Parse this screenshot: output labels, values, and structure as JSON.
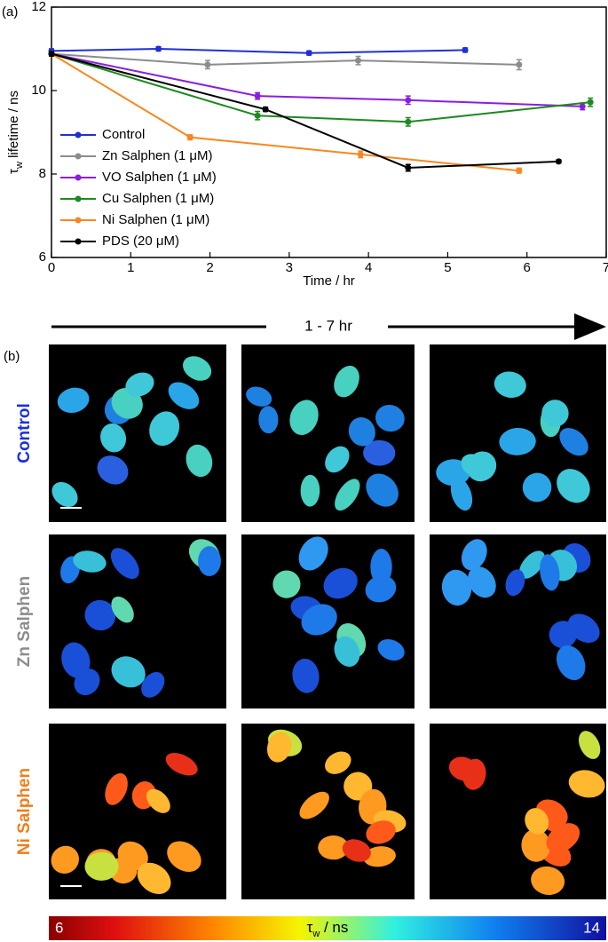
{
  "panel_a_label": "(a)",
  "panel_b_label": "(b)",
  "chart_data": {
    "type": "line",
    "xlabel": "Time / hr",
    "ylabel": {
      "symbol": "τ",
      "subscript": "w",
      "text": " lifetime / ns"
    },
    "xlim": [
      0,
      7
    ],
    "xticks": [
      0,
      1,
      2,
      3,
      4,
      5,
      6,
      7
    ],
    "ylim": [
      6,
      12
    ],
    "yticks": [
      6,
      8,
      10,
      12
    ],
    "legend": "lower left",
    "series": [
      {
        "name": "Control",
        "color": "#1f2fd6",
        "x": [
          0,
          1.35,
          3.25,
          5.22
        ],
        "values": [
          10.95,
          11.0,
          10.9,
          10.97
        ],
        "errors": [
          0.05,
          0.05,
          0.05,
          0.05
        ]
      },
      {
        "name": "Zn Salphen (1 μM)",
        "color": "#8c8c8c",
        "x": [
          0,
          1.97,
          3.87,
          5.9
        ],
        "values": [
          10.88,
          10.62,
          10.72,
          10.62
        ],
        "errors": [
          0.05,
          0.1,
          0.1,
          0.12
        ]
      },
      {
        "name": "VO Salphen (1 μM)",
        "color": "#8a1ee0",
        "x": [
          0,
          2.6,
          4.5,
          6.7
        ],
        "values": [
          10.88,
          9.87,
          9.77,
          9.62
        ],
        "errors": [
          0.05,
          0.08,
          0.1,
          0.08
        ]
      },
      {
        "name": "Cu Salphen (1 μM)",
        "color": "#1e8a1e",
        "x": [
          0,
          2.6,
          4.5,
          6.8
        ],
        "values": [
          10.88,
          9.4,
          9.25,
          9.72
        ],
        "errors": [
          0.05,
          0.1,
          0.1,
          0.1
        ]
      },
      {
        "name": "Ni Salphen (1 μM)",
        "color": "#f7871f",
        "x": [
          0,
          1.75,
          3.9,
          5.9
        ],
        "values": [
          10.88,
          8.88,
          8.47,
          8.08
        ],
        "errors": [
          0.05,
          0.06,
          0.08,
          0.06
        ]
      },
      {
        "name": "PDS (20 μM)",
        "color": "#000000",
        "x": [
          0,
          2.7,
          4.5,
          6.4
        ],
        "values": [
          10.88,
          9.55,
          8.15,
          8.3
        ],
        "errors": [
          0.05,
          0.05,
          0.08,
          0.04
        ]
      }
    ]
  },
  "arrow_label": "1 - 7 hr",
  "rows": [
    {
      "label": "Control",
      "color": "#1a2fe0"
    },
    {
      "label": "Zn Salphen",
      "color": "#8c8c8c"
    },
    {
      "label": "Ni Salphen",
      "color": "#f07d1a"
    }
  ],
  "colorbar": {
    "min": 6,
    "max": 14,
    "label": {
      "symbol": "τ",
      "subscript": "w",
      "text": " / ns"
    }
  }
}
